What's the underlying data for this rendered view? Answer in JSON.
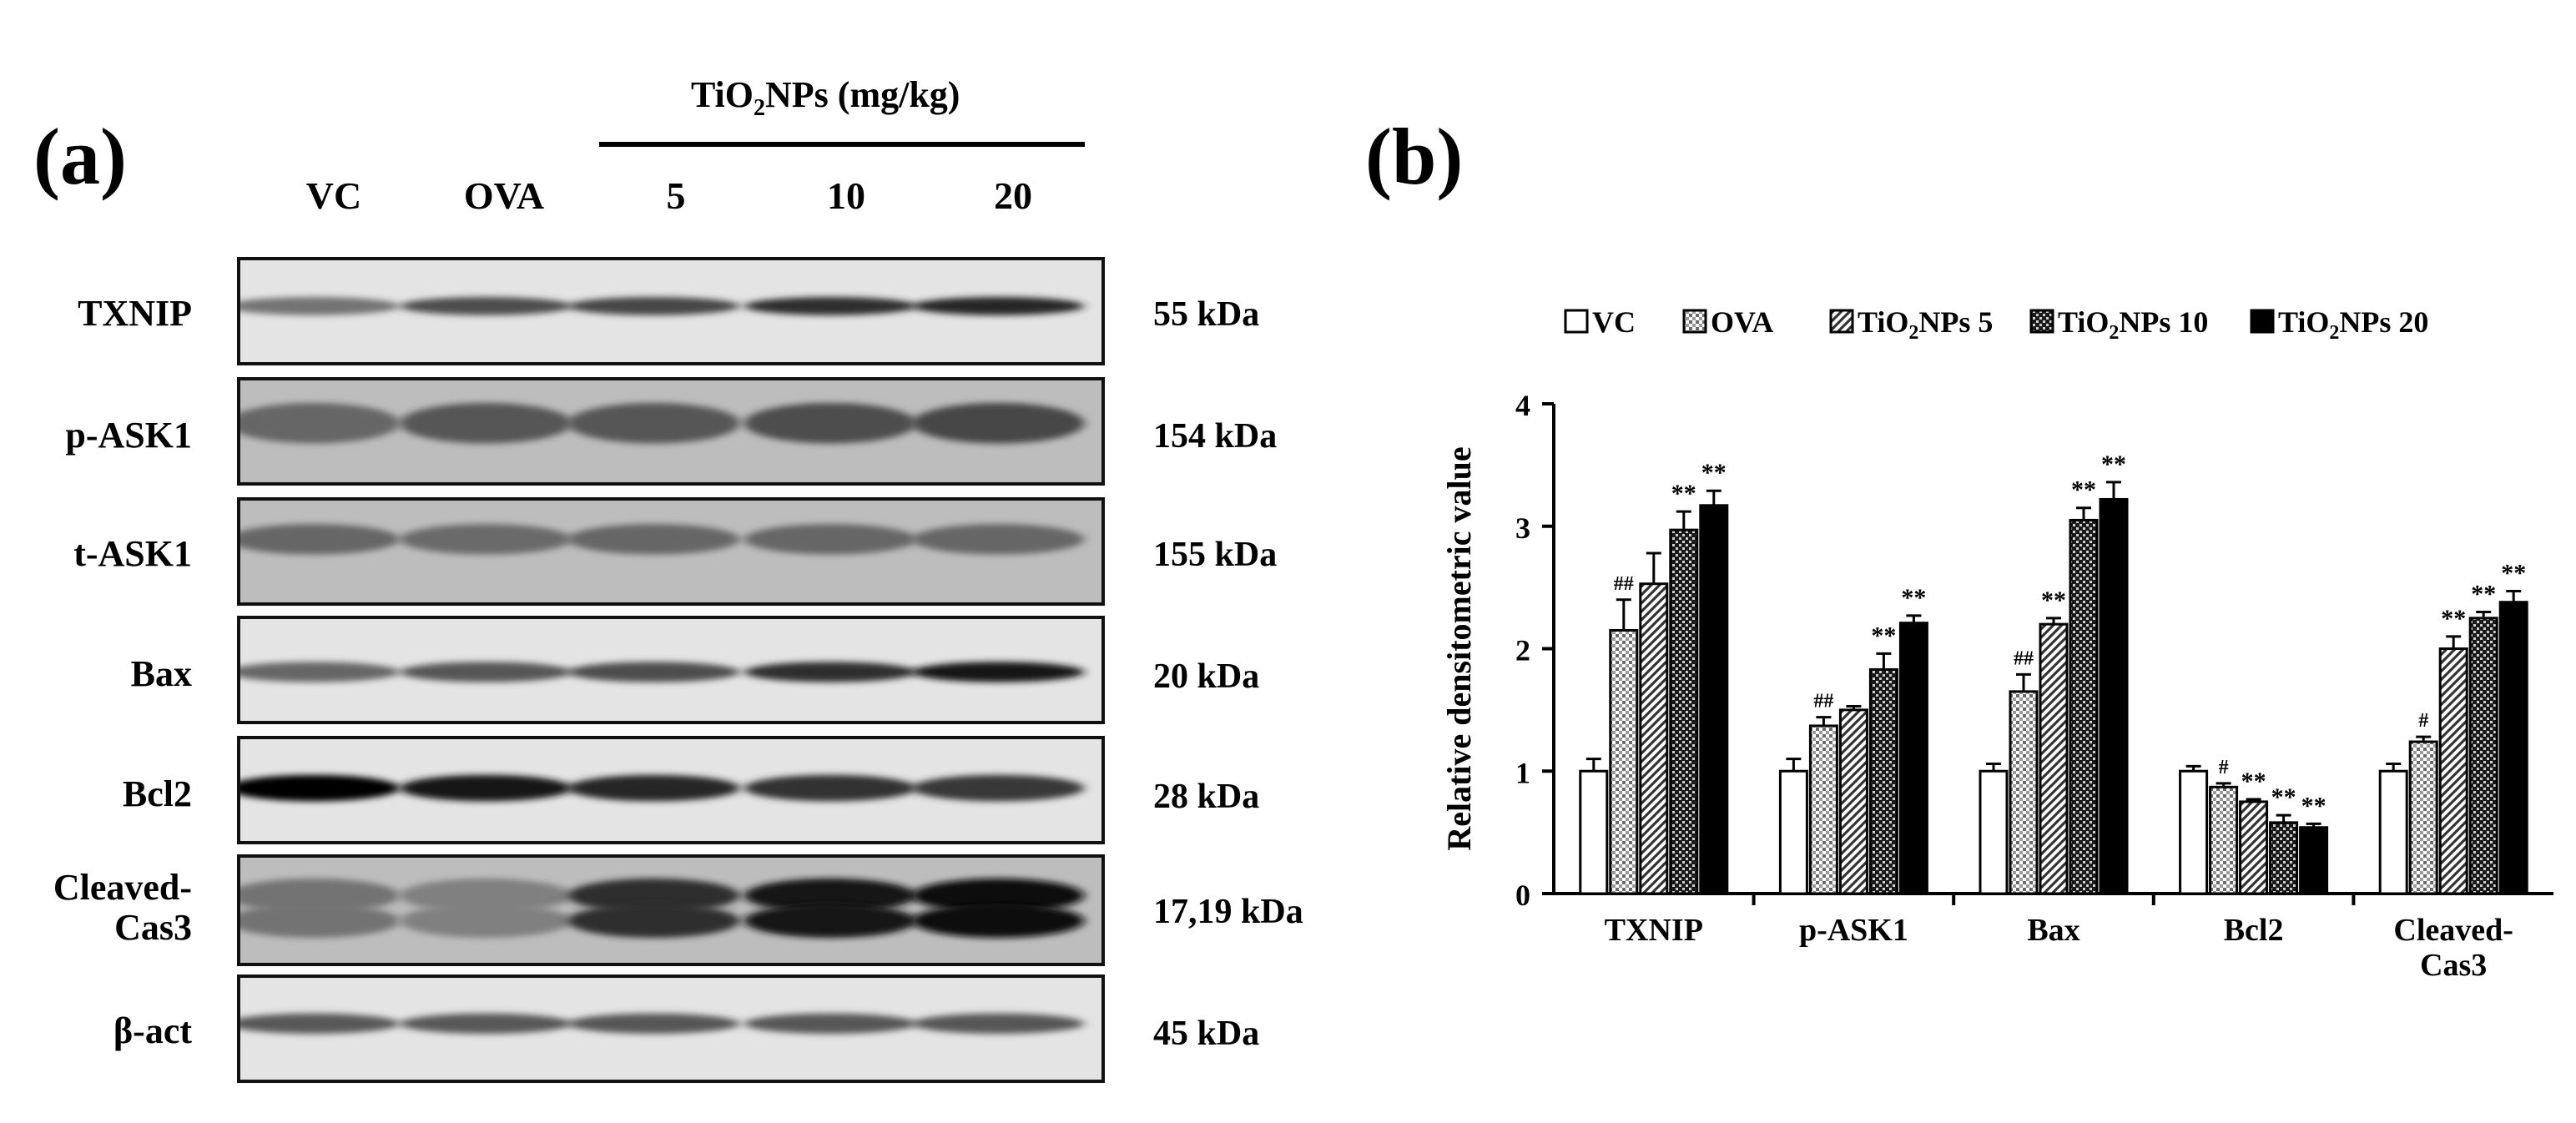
{
  "panel_a": {
    "letter": "(a)",
    "treatment_header": "TiO",
    "treatment_header_sub": "2",
    "treatment_header_tail": "NPs (mg/kg)",
    "lanes": [
      "VC",
      "OVA",
      "5",
      "10",
      "20"
    ],
    "rows": [
      {
        "label": "TXNIP",
        "kda": "55 kDa",
        "band_intensity": [
          0.55,
          0.7,
          0.72,
          0.82,
          0.85
        ]
      },
      {
        "label": "p-ASK1",
        "kda": "154 kDa",
        "band_intensity": [
          0.6,
          0.66,
          0.66,
          0.7,
          0.72
        ]
      },
      {
        "label": "t-ASK1",
        "kda": "155 kDa",
        "band_intensity": [
          0.6,
          0.58,
          0.6,
          0.6,
          0.6
        ]
      },
      {
        "label": "Bax",
        "kda": "20 kDa",
        "band_intensity": [
          0.6,
          0.66,
          0.7,
          0.82,
          0.9
        ]
      },
      {
        "label": "Bcl2",
        "kda": "28 kDa",
        "band_intensity": [
          0.98,
          0.9,
          0.85,
          0.8,
          0.78
        ]
      },
      {
        "label": "Cleaved-",
        "label2": "Cas3",
        "kda": "17,19 kDa",
        "band_intensity": [
          0.55,
          0.5,
          0.82,
          0.92,
          0.95
        ]
      },
      {
        "label": "β-act",
        "kda": "45 kDa",
        "band_intensity": [
          0.65,
          0.65,
          0.66,
          0.66,
          0.66
        ]
      }
    ]
  },
  "panel_b": {
    "letter": "(b)"
  },
  "chart_data": {
    "type": "bar",
    "title": "",
    "xlabel": "",
    "ylabel": "Relative densitometric value",
    "ylim": [
      0,
      4
    ],
    "yticks": [
      "0",
      "1",
      "2",
      "3",
      "4"
    ],
    "categories": [
      "TXNIP",
      "p-ASK1",
      "Bax",
      "Bcl2",
      "Cleaved-\nCas3"
    ],
    "legend_position": "top",
    "series": [
      {
        "name": "VC",
        "pattern": "white",
        "values": [
          1.0,
          1.0,
          1.0,
          1.0,
          1.0
        ],
        "errors": [
          0.1,
          0.1,
          0.06,
          0.04,
          0.06
        ],
        "marks": [
          "",
          "",
          "",
          "",
          ""
        ]
      },
      {
        "name": "OVA",
        "pattern": "dots",
        "values": [
          2.15,
          1.37,
          1.65,
          0.87,
          1.24
        ],
        "errors": [
          0.25,
          0.07,
          0.14,
          0.03,
          0.04
        ],
        "marks": [
          "##",
          "##",
          "##",
          "#",
          "#"
        ]
      },
      {
        "name": "TiO2NPs 5",
        "pattern": "diagonal",
        "values": [
          2.53,
          1.5,
          2.2,
          0.75,
          2.0
        ],
        "errors": [
          0.25,
          0.03,
          0.05,
          0.02,
          0.1
        ],
        "marks": [
          "",
          "",
          "**",
          "**",
          "**"
        ]
      },
      {
        "name": "TiO2NPs 10",
        "pattern": "checker",
        "values": [
          2.97,
          1.83,
          3.05,
          0.58,
          2.25
        ],
        "errors": [
          0.15,
          0.13,
          0.1,
          0.06,
          0.05
        ],
        "marks": [
          "**",
          "**",
          "**",
          "**",
          "**"
        ]
      },
      {
        "name": "TiO2NPs 20",
        "pattern": "black",
        "values": [
          3.17,
          2.21,
          3.22,
          0.54,
          2.38
        ],
        "errors": [
          0.12,
          0.06,
          0.14,
          0.03,
          0.09
        ],
        "marks": [
          "**",
          "**",
          "**",
          "**",
          "**"
        ]
      }
    ],
    "legend_labels": [
      {
        "main": "VC",
        "sub": "",
        "tail": ""
      },
      {
        "main": "OVA",
        "sub": "",
        "tail": ""
      },
      {
        "main": "TiO",
        "sub": "2",
        "tail": "NPs 5"
      },
      {
        "main": "TiO",
        "sub": "2",
        "tail": "NPs 10"
      },
      {
        "main": "TiO",
        "sub": "2",
        "tail": "NPs 20"
      }
    ]
  }
}
